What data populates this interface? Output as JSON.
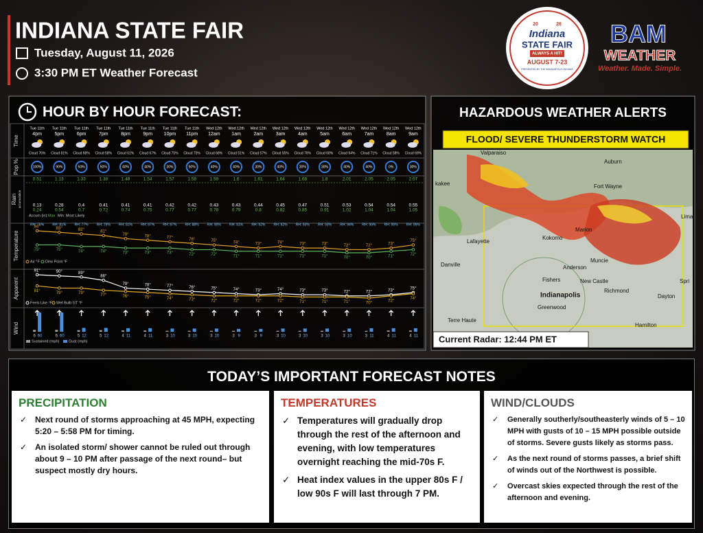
{
  "header": {
    "title": "INDIANA STATE FAIR",
    "date": "Tuesday, August 11, 2026",
    "time_label": "3:30 PM ET Weather Forecast"
  },
  "logos": {
    "fair": {
      "year_top": "20",
      "year_bottom": "26",
      "name": "Indiana",
      "sub": "STATE FAIR",
      "ribbon": "ALWAYS A HIT!",
      "dates": "AUGUST 7-23",
      "presenter": "PRESENTED BY THE INDIANAPOLIS INDIANS"
    },
    "bam": {
      "name": "BAM",
      "sub": "WEATHER",
      "tagline": "Weather. Made. Simple."
    }
  },
  "hourly": {
    "title": "HOUR BY HOUR FORECAST:",
    "row_labels": {
      "time": "Time",
      "pop": "Pop %",
      "rain": "Rain",
      "rain_sub": "accumulation",
      "temperature": "Temperature",
      "apparent": "Apparent",
      "wind": "Wind"
    },
    "days": [
      "Tue 11th",
      "Tue 11th",
      "Tue 11th",
      "Tue 11th",
      "Tue 11th",
      "Tue 11th",
      "Tue 11th",
      "Tue 11th",
      "Wed 12th",
      "Wed 12th",
      "Wed 12th",
      "Wed 12th",
      "Wed 12th",
      "Wed 12th",
      "Wed 12th",
      "Wed 12th",
      "Wed 12th",
      "Wed 12th"
    ],
    "hours": [
      "4pm",
      "5pm",
      "6pm",
      "7pm",
      "8pm",
      "9pm",
      "10pm",
      "11pm",
      "12am",
      "1am",
      "2am",
      "3am",
      "4am",
      "5am",
      "6am",
      "7am",
      "8am",
      "9am"
    ],
    "cloud": [
      "Cloud 76%",
      "Cloud 81%",
      "Cloud 68%",
      "Cloud 58%",
      "Cloud 61%",
      "Cloud 67%",
      "Cloud 75%",
      "Cloud 75%",
      "Cloud 68%",
      "Cloud 51%",
      "Cloud 57%",
      "Cloud 55%",
      "Cloud 76%",
      "Cloud 68%",
      "Cloud 64%",
      "Cloud 71%",
      "Cloud 58%",
      "Cloud 69%"
    ],
    "pop": [
      "100%",
      "90%",
      "50%",
      "50%",
      "40%",
      "40%",
      "30%",
      "50%",
      "40%",
      "40%",
      "30%",
      "40%",
      "30%",
      "30%",
      "40%",
      "40%",
      "0%",
      "30%"
    ],
    "rain_max": [
      0.51,
      1.13,
      1.33,
      1.38,
      1.48,
      1.54,
      1.57,
      1.58,
      1.59,
      1.6,
      1.61,
      1.64,
      1.68,
      1.8,
      2.01,
      2.05,
      2.05,
      2.07
    ],
    "rain_min": [
      0.13,
      0.28,
      0.4,
      0.41,
      0.41,
      0.41,
      0.42,
      0.42,
      0.43,
      0.43,
      0.44,
      0.45,
      0.47,
      0.51,
      0.53,
      0.54,
      0.54,
      0.55
    ],
    "rain_likely": [
      0.24,
      0.54,
      0.7,
      0.72,
      0.74,
      0.75,
      0.77,
      0.77,
      0.78,
      0.79,
      0.8,
      0.82,
      0.85,
      0.91,
      1.02,
      1.04,
      1.04,
      1.05
    ],
    "rain_legend": {
      "accum": "Accum (in):",
      "max": "Max",
      "min": "Min: Most Likely"
    },
    "rh": [
      "RH: 76%",
      "RH: 81%",
      "RH: 77%",
      "RH: 79%",
      "RH: 81%",
      "RH: 87%",
      "RH: 87%",
      "RH: 88%",
      "RH: 90%",
      "RH: 91%",
      "RH: 92%",
      "RH: 92%",
      "RH: 93%",
      "RH: 93%",
      "RH: 94%",
      "RH: 95%",
      "RH: 95%",
      "RH: 95%"
    ],
    "air": {
      "name": "Air °F",
      "color": "#e8a020",
      "values": [
        84,
        83,
        82,
        81,
        79,
        78,
        77,
        76,
        75,
        74,
        73,
        74,
        73,
        73,
        72,
        72,
        73,
        75
      ],
      "value_labels": [
        "84°",
        "83°",
        "82°",
        "81°",
        "79°",
        "78°",
        "77°",
        "76°",
        "75°",
        "74°",
        "73°",
        "74°",
        "73°",
        "73°",
        "72°",
        "72°",
        "73°",
        "75°"
      ]
    },
    "dew": {
      "name": "Dew Point °F",
      "color": "#5cb85c",
      "values": [
        75,
        75,
        74,
        74,
        73,
        73,
        73,
        72,
        72,
        71,
        71,
        71,
        71,
        71,
        70,
        70,
        71,
        72
      ],
      "value_labels": [
        "75°",
        "75°",
        "74°",
        "74°",
        "73°",
        "73°",
        "73°",
        "72°",
        "72°",
        "71°",
        "71°",
        "71°",
        "71°",
        "71°",
        "70°",
        "70°",
        "71°",
        "72°"
      ]
    },
    "feels": {
      "name": "Feels Like °F",
      "color": "#ffffff",
      "values": [
        91,
        90,
        89,
        86,
        79,
        78,
        77,
        76,
        75,
        74,
        73,
        74,
        73,
        73,
        72,
        72,
        73,
        75
      ],
      "value_labels": [
        "91°",
        "90°",
        "89°",
        "86°",
        "79°",
        "78°",
        "77°",
        "76°",
        "75°",
        "74°",
        "73°",
        "74°",
        "73°",
        "73°",
        "72°",
        "72°",
        "73°",
        "75°"
      ]
    },
    "wetbulb": {
      "name": "Wet Bulb GT °F",
      "color": "#e8b020",
      "values": [
        81,
        79,
        79,
        77,
        76,
        75,
        74,
        73,
        72,
        72,
        72,
        72,
        71,
        71,
        71,
        70,
        72,
        74
      ],
      "value_labels": [
        "81°",
        "79°",
        "79°",
        "77°",
        "76°",
        "75°",
        "74°",
        "73°",
        "72°",
        "72°",
        "72°",
        "72°",
        "71°",
        "71°",
        "71°",
        "70°",
        "72°",
        "74°"
      ]
    },
    "wind": {
      "sustained": {
        "name": "Sustained (mph)",
        "color": "#9a9a9a",
        "values": [
          6,
          6,
          5,
          5,
          4,
          4,
          3,
          3,
          3,
          3,
          3,
          3,
          3,
          3,
          3,
          3,
          4,
          4
        ]
      },
      "gust": {
        "name": "Gust (mph)",
        "color": "#4a90d9",
        "values": [
          60,
          60,
          12,
          12,
          11,
          11,
          10,
          10,
          10,
          9,
          9,
          10,
          10,
          10,
          10,
          11,
          11,
          11
        ]
      }
    }
  },
  "alerts": {
    "title": "HAZARDOUS WEATHER ALERTS",
    "banner": "FLOOD/ SEVERE THUNDERSTORM WATCH",
    "radar_label": "Current Radar: 12:44 PM ET",
    "cities": [
      "Valparaiso",
      "Auburn",
      "Fort Wayne",
      "Lima",
      "kakee",
      "Kokomo",
      "Marion",
      "Lafayette",
      "Danville",
      "Anderson",
      "Muncie",
      "Fishers",
      "New Castle",
      "Spri",
      "Indianapolis",
      "Richmond",
      "Dayton",
      "Greenwood",
      "Terre Haute",
      "Hamilton"
    ]
  },
  "notes": {
    "title": "TODAY’S IMPORTANT FORECAST NOTES",
    "sections": [
      {
        "heading": "PRECIPITATION",
        "bullets": [
          "Next round of storms approaching at 45 MPH, expecting 5:20 – 5:58 PM for timing.",
          "An isolated storm/ shower cannot be ruled out through about 9 – 10 PM after passage of the next round– but suspect mostly dry hours."
        ]
      },
      {
        "heading": "TEMPERATURES",
        "bullets": [
          "Temperatures will gradually drop through the rest of the afternoon and evening, with low temperatures overnight reaching the mid-70s F.",
          "Heat index values in the upper 80s F / low 90s F will last through 7 PM."
        ]
      },
      {
        "heading": "WIND/CLOUDS",
        "bullets": [
          "Generally southerly/southeasterly winds of 5 – 10 MPH with gusts of 10 – 15 MPH possible outside of storms. Severe gusts likely as storms pass.",
          "As the next round of storms passes, a brief shift of winds out of the Northwest is possible.",
          "Overcast skies expected through the rest of the afternoon and evening."
        ]
      }
    ]
  }
}
